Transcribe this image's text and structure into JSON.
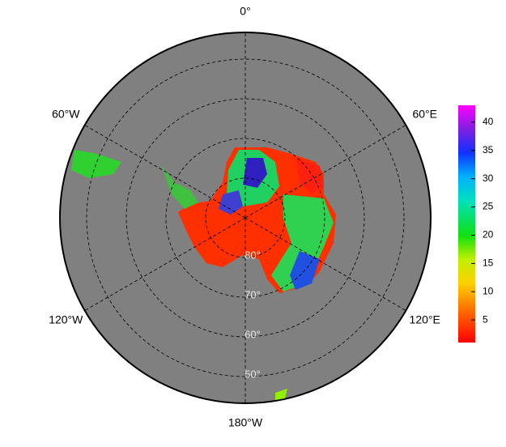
{
  "map": {
    "lon_labels": [
      {
        "value": 0,
        "label": "0°"
      },
      {
        "value": 60,
        "label": "60°E"
      },
      {
        "value": 120,
        "label": "120°E"
      },
      {
        "value": 180,
        "label": "180°W"
      },
      {
        "value": -120,
        "label": "120°W"
      },
      {
        "value": -60,
        "label": "60°W"
      }
    ],
    "lat_labels": [
      {
        "value": -80,
        "label": "80°"
      },
      {
        "value": -70,
        "label": "70°"
      },
      {
        "value": -60,
        "label": "60°"
      },
      {
        "value": -50,
        "label": "50°"
      }
    ],
    "colorbar": {
      "lim": [
        1,
        43
      ],
      "ticks": [
        5,
        10,
        15,
        20,
        25,
        30,
        35,
        40
      ]
    }
  }
}
